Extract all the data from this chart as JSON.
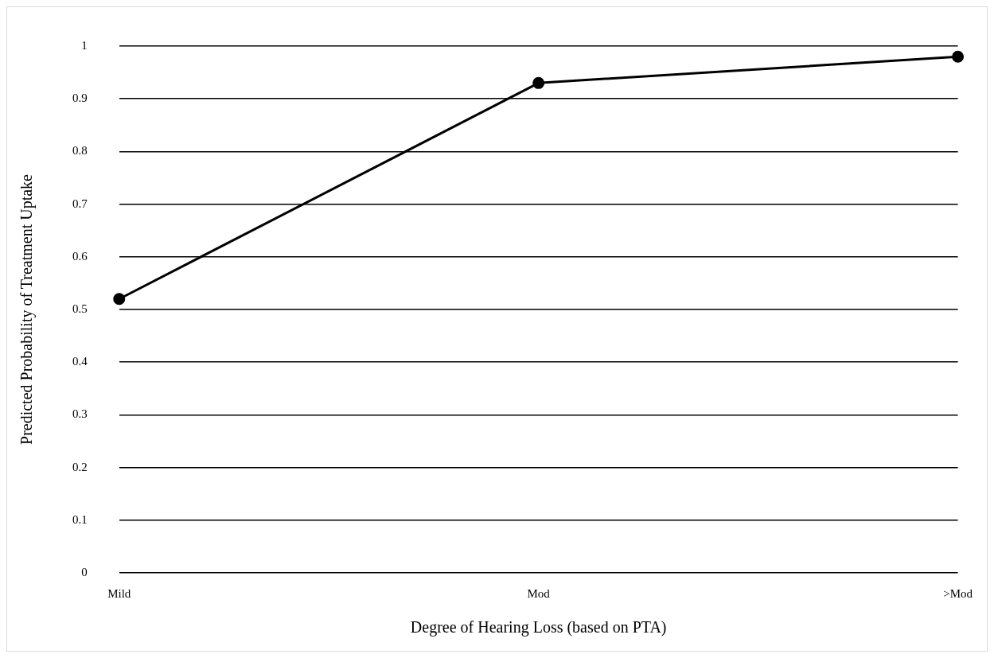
{
  "chart_data": {
    "type": "line",
    "xlabel": "Degree of Hearing Loss (based on PTA)",
    "ylabel": "Predicted Probability of Treatment Uptake",
    "categories": [
      "Mild",
      "Mod",
      ">Mod"
    ],
    "series": [
      {
        "color": "#000000",
        "values": [
          0.52,
          0.93,
          0.98
        ]
      }
    ],
    "ylim": [
      0,
      1
    ],
    "yticks": [
      0,
      0.1,
      0.2,
      0.3,
      0.4,
      0.5,
      0.6,
      0.7,
      0.8,
      0.9,
      1
    ],
    "grid": "y",
    "legend": false,
    "marker": "circle",
    "line_style": "solid"
  }
}
